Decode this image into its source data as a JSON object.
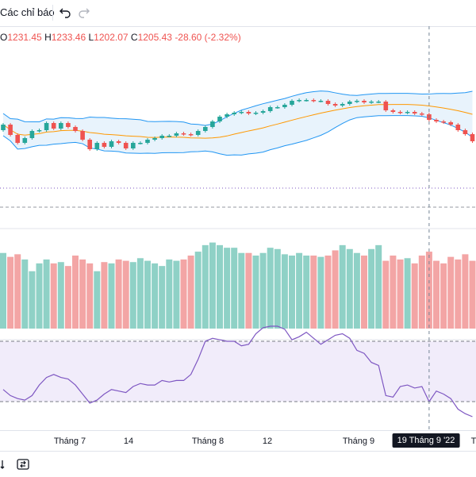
{
  "toolbar": {
    "indicators_label": "Các chỉ báo"
  },
  "legend": {
    "open_label": "O",
    "open": "1231.45",
    "high_label": "H",
    "high": "1233.46",
    "low_label": "L",
    "low": "1202.07",
    "close_label": "C",
    "close": "1205.43",
    "change": "-28.60 (-2.32%)"
  },
  "colors": {
    "up": "#26a69a",
    "down": "#ef5350",
    "up_volume": "#8fd1c6",
    "down_volume": "#f3a5a5",
    "bollinger": "#2196f3",
    "bollinger_fill": "#e8f3fc",
    "ma": "#ff9800",
    "rsi": "#7e57c2",
    "rsi_band": "#f1ecfa",
    "crosshair": "#758696"
  },
  "time_axis": {
    "labels": [
      "Tháng 7",
      "14",
      "Tháng 8",
      "12",
      "Tháng 9",
      "T"
    ],
    "crosshair_label": "19 Tháng 9 '22"
  },
  "chart_data": {
    "type": "candlestick",
    "subcharts": [
      "price",
      "volume",
      "rsi"
    ],
    "crosshair_index": 59,
    "candles": [
      {
        "o": 1219,
        "c": 1226
      },
      {
        "o": 1226,
        "c": 1213
      },
      {
        "o": 1213,
        "c": 1203
      },
      {
        "o": 1203,
        "c": 1209
      },
      {
        "o": 1209,
        "c": 1218
      },
      {
        "o": 1218,
        "c": 1219
      },
      {
        "o": 1219,
        "c": 1228
      },
      {
        "o": 1228,
        "c": 1221
      },
      {
        "o": 1221,
        "c": 1228
      },
      {
        "o": 1228,
        "c": 1223
      },
      {
        "o": 1223,
        "c": 1218
      },
      {
        "o": 1218,
        "c": 1207
      },
      {
        "o": 1207,
        "c": 1195
      },
      {
        "o": 1195,
        "c": 1203
      },
      {
        "o": 1203,
        "c": 1198
      },
      {
        "o": 1198,
        "c": 1205
      },
      {
        "o": 1205,
        "c": 1203
      },
      {
        "o": 1203,
        "c": 1196
      },
      {
        "o": 1196,
        "c": 1203
      },
      {
        "o": 1203,
        "c": 1203
      },
      {
        "o": 1203,
        "c": 1207
      },
      {
        "o": 1207,
        "c": 1209
      },
      {
        "o": 1209,
        "c": 1212
      },
      {
        "o": 1212,
        "c": 1212
      },
      {
        "o": 1212,
        "c": 1215
      },
      {
        "o": 1215,
        "c": 1214
      },
      {
        "o": 1214,
        "c": 1213
      },
      {
        "o": 1213,
        "c": 1218
      },
      {
        "o": 1218,
        "c": 1223
      },
      {
        "o": 1223,
        "c": 1230
      },
      {
        "o": 1230,
        "c": 1236
      },
      {
        "o": 1236,
        "c": 1239
      },
      {
        "o": 1239,
        "c": 1241
      },
      {
        "o": 1241,
        "c": 1242
      },
      {
        "o": 1242,
        "c": 1240
      },
      {
        "o": 1240,
        "c": 1241
      },
      {
        "o": 1241,
        "c": 1243
      },
      {
        "o": 1243,
        "c": 1248
      },
      {
        "o": 1248,
        "c": 1248
      },
      {
        "o": 1248,
        "c": 1251
      },
      {
        "o": 1251,
        "c": 1256
      },
      {
        "o": 1256,
        "c": 1257
      },
      {
        "o": 1257,
        "c": 1257
      },
      {
        "o": 1257,
        "c": 1256
      },
      {
        "o": 1256,
        "c": 1256
      },
      {
        "o": 1256,
        "c": 1252
      },
      {
        "o": 1252,
        "c": 1250
      },
      {
        "o": 1250,
        "c": 1252
      },
      {
        "o": 1252,
        "c": 1255
      },
      {
        "o": 1255,
        "c": 1256
      },
      {
        "o": 1256,
        "c": 1254
      },
      {
        "o": 1254,
        "c": 1255
      },
      {
        "o": 1255,
        "c": 1255
      },
      {
        "o": 1255,
        "c": 1244
      },
      {
        "o": 1244,
        "c": 1242
      },
      {
        "o": 1242,
        "c": 1241
      },
      {
        "o": 1241,
        "c": 1242
      },
      {
        "o": 1242,
        "c": 1240
      },
      {
        "o": 1240,
        "c": 1239
      },
      {
        "o": 1239,
        "c": 1232
      },
      {
        "o": 1232,
        "c": 1230
      },
      {
        "o": 1230,
        "c": 1229
      },
      {
        "o": 1229,
        "c": 1226
      },
      {
        "o": 1226,
        "c": 1219
      },
      {
        "o": 1219,
        "c": 1214
      },
      {
        "o": 1214,
        "c": 1205
      }
    ],
    "volume": [
      58,
      55,
      57,
      53,
      44,
      50,
      53,
      50,
      51,
      48,
      56,
      53,
      50,
      44,
      51,
      50,
      53,
      52,
      51,
      54,
      52,
      50,
      48,
      53,
      52,
      53,
      56,
      59,
      64,
      66,
      64,
      62,
      62,
      58,
      58,
      56,
      58,
      62,
      61,
      57,
      56,
      58,
      56,
      56,
      55,
      56,
      60,
      64,
      61,
      58,
      56,
      61,
      64,
      52,
      56,
      53,
      54,
      50,
      56,
      59,
      52,
      50,
      55,
      53,
      57,
      52
    ],
    "rsi": [
      38,
      34,
      32,
      31,
      34,
      41,
      46,
      48,
      46,
      45,
      41,
      35,
      29,
      31,
      35,
      38,
      37,
      36,
      40,
      42,
      41,
      41,
      44,
      43,
      44,
      44,
      48,
      58,
      70,
      72,
      71,
      70,
      70,
      67,
      68,
      75,
      79,
      80,
      80,
      78,
      71,
      73,
      76,
      72,
      68,
      71,
      74,
      75,
      72,
      64,
      62,
      56,
      54,
      34,
      33,
      40,
      41,
      39,
      40,
      30,
      37,
      35,
      32,
      25,
      22,
      20
    ]
  }
}
